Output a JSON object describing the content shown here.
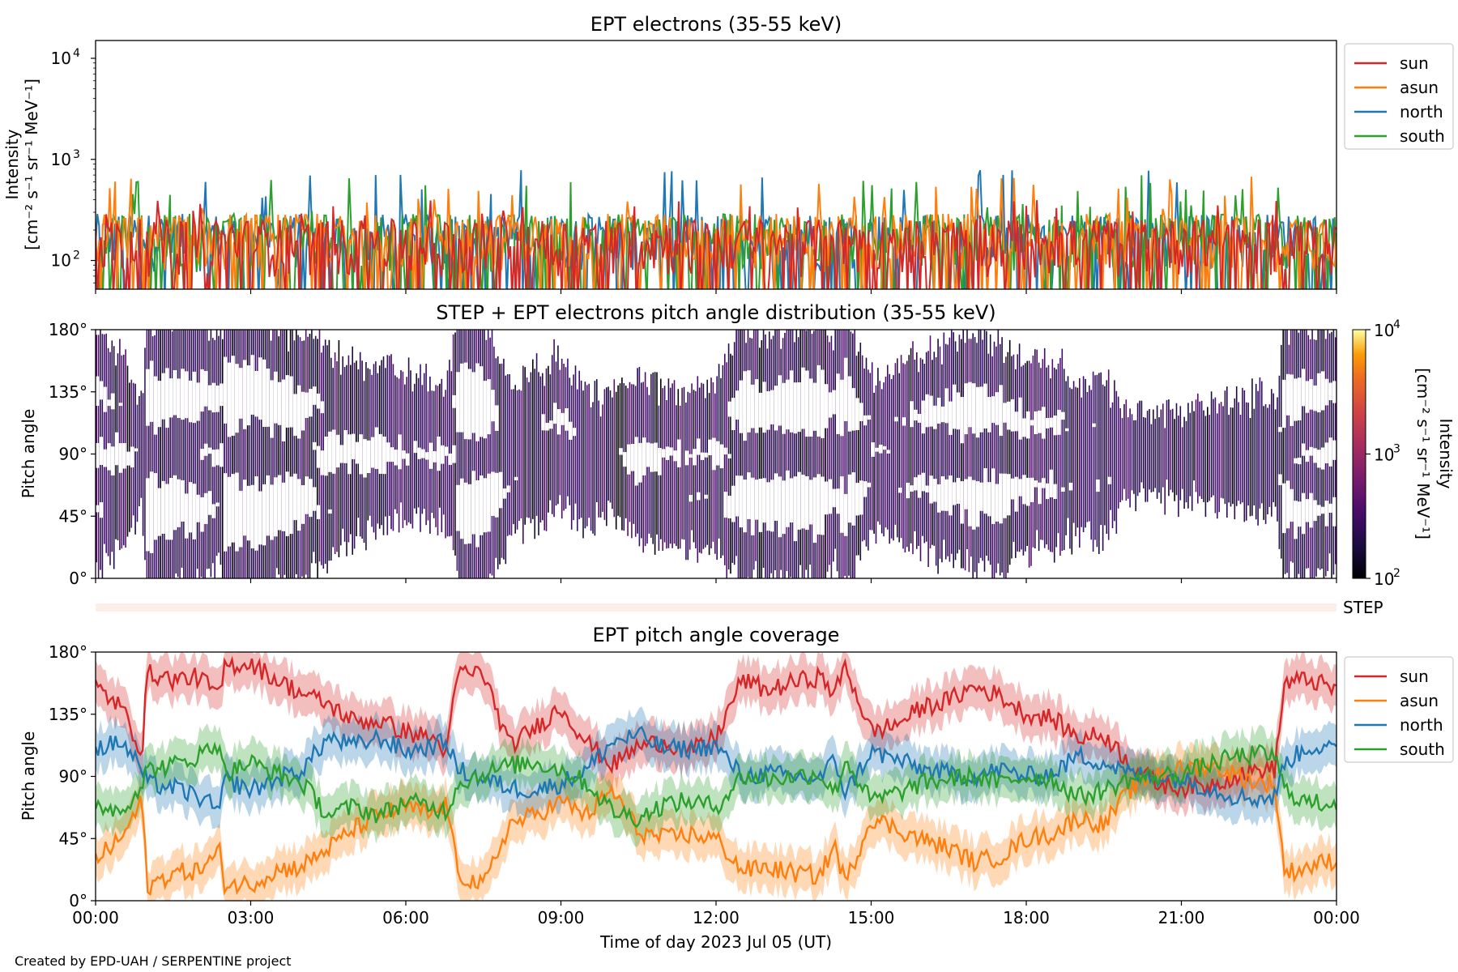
{
  "figure": {
    "credit": "Created by EPD-UAH / SERPENTINE project",
    "xlabel": "Time of day 2023 Jul 05 (UT)",
    "x_ticks": [
      "00:00",
      "03:00",
      "06:00",
      "09:00",
      "12:00",
      "15:00",
      "18:00",
      "21:00",
      "00:00"
    ]
  },
  "colors": {
    "sun": "#d62728",
    "asun": "#ff7f0e",
    "north": "#1f77b4",
    "south": "#2ca02c"
  },
  "chart_data": [
    {
      "type": "line",
      "title": "EPT electrons (35-55 keV)",
      "ylabel": "Intensity",
      "ylabel_unit": "[cm⁻² s⁻¹ sr⁻¹ MeV⁻¹]",
      "yscale": "log",
      "ylim": [
        52,
        15000
      ],
      "y_ticks": [
        {
          "value": 100,
          "base": "10",
          "exp": "2"
        },
        {
          "value": 1000,
          "base": "10",
          "exp": "3"
        },
        {
          "value": 10000,
          "base": "10",
          "exp": "4"
        }
      ],
      "xlim_hours": [
        0,
        24
      ],
      "legend": "outside-right",
      "series": [
        {
          "name": "sun",
          "color": "#d62728",
          "typical": 150,
          "peak": 400
        },
        {
          "name": "asun",
          "color": "#ff7f0e",
          "typical": 170,
          "peak": 700
        },
        {
          "name": "north",
          "color": "#1f77b4",
          "typical": 170,
          "peak": 800
        },
        {
          "name": "south",
          "color": "#2ca02c",
          "typical": 170,
          "peak": 700
        }
      ]
    },
    {
      "type": "heatmap",
      "title": "STEP + EPT electrons pitch angle distribution (35-55 keV)",
      "ylabel": "Pitch angle",
      "ylim": [
        0,
        180
      ],
      "y_ticks": [
        "0°",
        "45°",
        "90°",
        "135°",
        "180°"
      ],
      "xlim_hours": [
        0,
        24
      ],
      "colorbar": {
        "label": "Intensity",
        "unit": "[cm⁻² s⁻¹ sr⁻¹ MeV⁻¹]",
        "scale": "log",
        "range": [
          100,
          10000
        ],
        "ticks": [
          {
            "base": "10",
            "exp": "2"
          },
          {
            "base": "10",
            "exp": "3"
          },
          {
            "base": "10",
            "exp": "4"
          }
        ]
      },
      "step_strip_label": "STEP"
    },
    {
      "type": "line",
      "title": "EPT pitch angle coverage",
      "ylabel": "Pitch angle",
      "ylim": [
        0,
        180
      ],
      "y_ticks": [
        "0°",
        "45°",
        "90°",
        "135°",
        "180°"
      ],
      "xlim_hours": [
        0,
        24
      ],
      "legend": "outside-right",
      "band_halfwidth_deg": 15,
      "series": [
        {
          "name": "sun",
          "color": "#d62728",
          "hours": [
            0,
            0.5,
            0.9,
            1.0,
            1.5,
            2.0,
            2.4,
            2.5,
            3.0,
            3.5,
            4.0,
            4.5,
            5.0,
            5.5,
            6.0,
            6.5,
            6.8,
            7.0,
            7.5,
            8.0,
            8.5,
            9.0,
            9.5,
            10.0,
            10.5,
            11.0,
            11.5,
            12.0,
            12.5,
            13.0,
            13.5,
            14.0,
            14.3,
            14.5,
            15.0,
            15.5,
            16.0,
            16.5,
            17.0,
            17.5,
            18.0,
            18.5,
            19.0,
            19.5,
            20.0,
            20.5,
            21.0,
            21.5,
            22.0,
            22.5,
            22.8,
            23.0,
            23.5,
            24
          ],
          "values": [
            155,
            140,
            108,
            165,
            160,
            162,
            148,
            170,
            172,
            160,
            150,
            142,
            130,
            130,
            122,
            118,
            108,
            165,
            165,
            112,
            125,
            140,
            115,
            98,
            112,
            115,
            108,
            118,
            160,
            152,
            158,
            162,
            150,
            170,
            122,
            128,
            140,
            145,
            155,
            148,
            135,
            132,
            118,
            120,
            100,
            85,
            82,
            83,
            90,
            95,
            95,
            158,
            160,
            152
          ]
        },
        {
          "name": "asun",
          "color": "#ff7f0e",
          "hours": [
            0,
            0.5,
            0.9,
            1.0,
            1.5,
            2.0,
            2.4,
            2.5,
            3.0,
            3.5,
            4.0,
            4.5,
            5.0,
            5.5,
            6.0,
            6.5,
            6.8,
            7.0,
            7.5,
            8.0,
            8.5,
            9.0,
            9.5,
            10.0,
            10.5,
            11.0,
            11.5,
            12.0,
            12.5,
            13.0,
            13.5,
            14.0,
            14.3,
            14.5,
            15.0,
            15.5,
            16.0,
            16.5,
            17.0,
            17.5,
            18.0,
            18.5,
            19.0,
            19.5,
            20.0,
            20.5,
            21.0,
            21.5,
            22.0,
            22.5,
            22.8,
            23.0,
            23.5,
            24
          ],
          "values": [
            30,
            45,
            72,
            10,
            20,
            22,
            35,
            12,
            12,
            22,
            25,
            38,
            52,
            62,
            68,
            62,
            70,
            20,
            10,
            55,
            62,
            72,
            62,
            80,
            50,
            45,
            48,
            45,
            22,
            24,
            20,
            18,
            40,
            12,
            60,
            52,
            44,
            38,
            28,
            32,
            45,
            48,
            60,
            55,
            80,
            92,
            95,
            98,
            92,
            85,
            85,
            20,
            25,
            30
          ]
        },
        {
          "name": "north",
          "color": "#1f77b4",
          "hours": [
            0,
            0.5,
            0.9,
            1.0,
            1.5,
            2.0,
            2.4,
            2.5,
            3.0,
            3.5,
            4.0,
            4.5,
            5.0,
            5.5,
            6.0,
            6.5,
            6.8,
            7.0,
            7.5,
            8.0,
            8.5,
            9.0,
            9.5,
            10.0,
            10.5,
            11.0,
            11.5,
            12.0,
            12.5,
            13.0,
            13.5,
            14.0,
            14.3,
            14.5,
            15.0,
            15.5,
            16.0,
            16.5,
            17.0,
            17.5,
            18.0,
            18.5,
            19.0,
            19.5,
            20.0,
            20.5,
            21.0,
            21.5,
            22.0,
            22.5,
            22.8,
            23.0,
            23.5,
            24
          ],
          "values": [
            110,
            115,
            95,
            85,
            82,
            75,
            65,
            88,
            80,
            88,
            95,
            118,
            112,
            118,
            108,
            112,
            115,
            95,
            88,
            82,
            80,
            85,
            95,
            115,
            120,
            110,
            110,
            112,
            90,
            92,
            90,
            88,
            102,
            78,
            108,
            102,
            95,
            92,
            90,
            95,
            90,
            92,
            105,
            100,
            92,
            90,
            88,
            82,
            76,
            74,
            75,
            100,
            112,
            108
          ]
        },
        {
          "name": "south",
          "color": "#2ca02c",
          "hours": [
            0,
            0.5,
            0.9,
            1.0,
            1.5,
            2.0,
            2.4,
            2.5,
            3.0,
            3.5,
            4.0,
            4.5,
            5.0,
            5.5,
            6.0,
            6.5,
            6.8,
            7.0,
            7.5,
            8.0,
            8.5,
            9.0,
            9.5,
            10.0,
            10.5,
            11.0,
            11.5,
            12.0,
            12.5,
            13.0,
            13.5,
            14.0,
            14.3,
            14.5,
            15.0,
            15.5,
            16.0,
            16.5,
            17.0,
            17.5,
            18.0,
            18.5,
            19.0,
            19.5,
            20.0,
            20.5,
            21.0,
            21.5,
            22.0,
            22.5,
            22.8,
            23.0,
            23.5,
            24
          ],
          "values": [
            70,
            65,
            85,
            95,
            98,
            105,
            115,
            92,
            100,
            92,
            85,
            62,
            68,
            62,
            72,
            68,
            65,
            85,
            92,
            98,
            100,
            95,
            85,
            65,
            60,
            70,
            72,
            68,
            90,
            88,
            90,
            92,
            78,
            102,
            72,
            78,
            85,
            88,
            90,
            85,
            90,
            88,
            75,
            80,
            88,
            90,
            92,
            98,
            104,
            106,
            105,
            80,
            70,
            72
          ]
        }
      ]
    }
  ]
}
